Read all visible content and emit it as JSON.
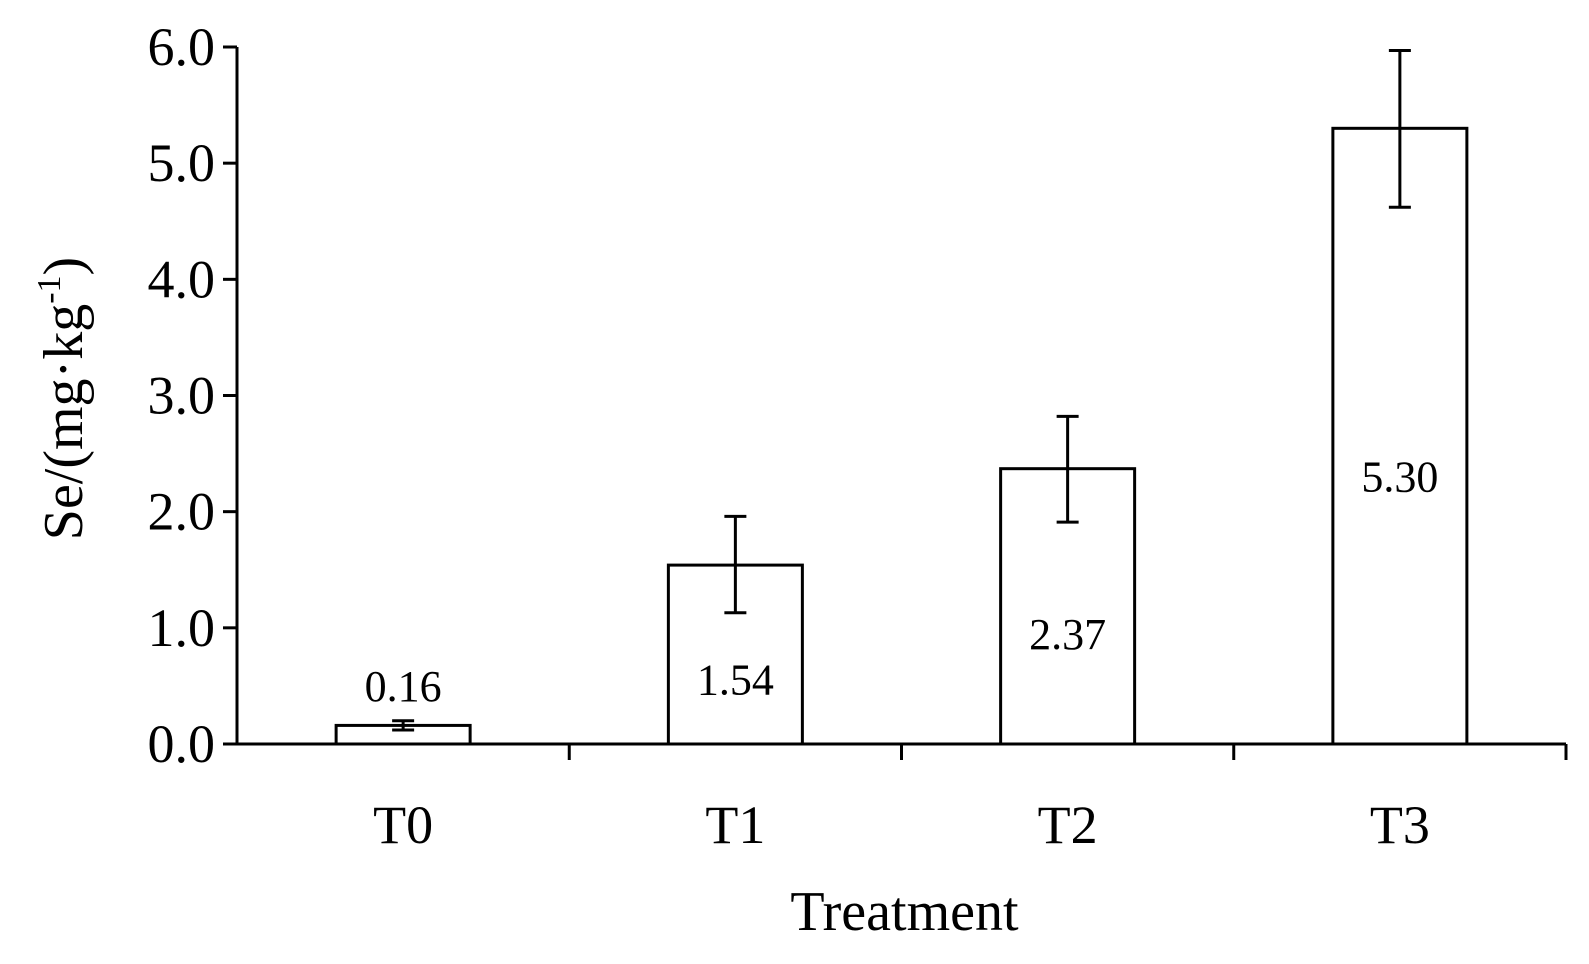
{
  "chart_data": {
    "type": "bar",
    "categories": [
      "T0",
      "T1",
      "T2",
      "T3"
    ],
    "values": [
      0.16,
      1.54,
      2.37,
      5.3
    ],
    "error_low": [
      0.12,
      1.13,
      1.91,
      4.62
    ],
    "error_high": [
      0.2,
      1.96,
      2.82,
      5.97
    ],
    "data_labels": [
      "0.16",
      "1.54",
      "2.37",
      "5.30"
    ],
    "data_label_position": [
      "above",
      "inside",
      "inside",
      "inside"
    ],
    "xlabel": "Treatment",
    "ylabel": {
      "prefix": "Se/(mg·kg",
      "superscript": "-1",
      "suffix": ")"
    },
    "ylim": [
      0,
      6.0
    ],
    "yticks": [
      0.0,
      1.0,
      2.0,
      3.0,
      4.0,
      5.0,
      6.0
    ],
    "ytick_labels": [
      "0.0",
      "1.0",
      "2.0",
      "3.0",
      "4.0",
      "5.0",
      "6.0"
    ],
    "grid": false,
    "bar_fill": "#ffffff",
    "bar_stroke": "#000000"
  }
}
